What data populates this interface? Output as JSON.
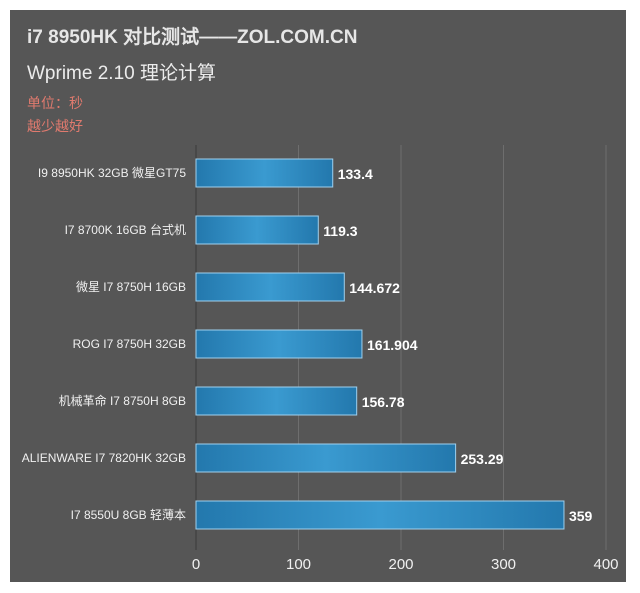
{
  "header": {
    "title": "i7 8950HK 对比测试——ZOL.COM.CN",
    "subtitle": "Wprime 2.10 理论计算",
    "unit_note": "单位：秒",
    "hint": "越少越好"
  },
  "chart_data": {
    "type": "bar",
    "orientation": "horizontal",
    "title": "i7 8950HK 对比测试——ZOL.COM.CN",
    "subtitle": "Wprime 2.10 理论计算",
    "categories": [
      "I9 8950HK  32GB 微星GT75",
      "I7 8700K 16GB 台式机",
      "微星 I7 8750H 16GB",
      "ROG I7 8750H 32GB",
      "机械革命 I7 8750H 8GB",
      "ALIENWARE I7 7820HK 32GB",
      "I7 8550U 8GB 轻薄本"
    ],
    "values": [
      133.4,
      119.3,
      144.672,
      161.904,
      156.78,
      253.29,
      359
    ],
    "value_labels": [
      "133.4",
      "119.3",
      "144.672",
      "161.904",
      "156.78",
      "253.29",
      "359"
    ],
    "xlim": [
      0,
      400
    ],
    "xticks": [
      "0",
      "100",
      "200",
      "300",
      "400"
    ],
    "grid": true,
    "colors": {
      "bar": "#2a86bd",
      "background": "#565656",
      "note": "#e07a6e"
    }
  }
}
